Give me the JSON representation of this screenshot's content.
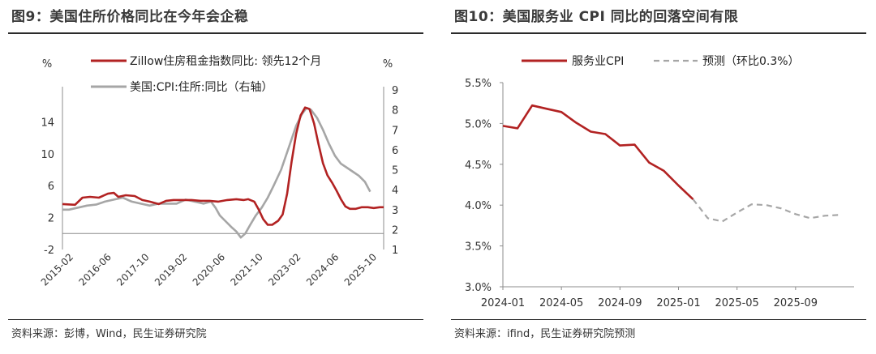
{
  "left": {
    "title": "图9：美国住所价格同比在今年会企稳",
    "source": "资料来源：彭博，Wind，民生证券研究院",
    "chart_data": {
      "type": "line",
      "left_unit": "%",
      "right_unit": "%",
      "y_left": {
        "min": -2,
        "max": 18,
        "ticks": [
          -2,
          2,
          6,
          10,
          14
        ]
      },
      "y_right": {
        "min": 1,
        "max": 9,
        "ticks": [
          1,
          2,
          3,
          4,
          5,
          6,
          7,
          8,
          9
        ]
      },
      "x_tick_labels": [
        "2015-02",
        "2016-06",
        "2017-10",
        "2019-02",
        "2020-06",
        "2021-10",
        "2023-02",
        "2024-06",
        "2025-10"
      ],
      "x_range": [
        2015.08,
        2025.83
      ],
      "legend": [
        "Zillow住房租金指数同比: 领先12个月",
        "美国:CPI:住所:同比（右轴）"
      ],
      "colors": {
        "zillow": "#b22222",
        "cpi": "#a6a6a6"
      },
      "series": [
        {
          "name": "Zillow住房租金指数同比: 领先12个月",
          "axis": "left",
          "points": [
            [
              2015.08,
              3.7
            ],
            [
              2015.5,
              3.6
            ],
            [
              2015.75,
              4.5
            ],
            [
              2016.0,
              4.6
            ],
            [
              2016.3,
              4.5
            ],
            [
              2016.6,
              5.0
            ],
            [
              2016.8,
              5.1
            ],
            [
              2016.95,
              4.6
            ],
            [
              2017.2,
              4.8
            ],
            [
              2017.5,
              4.7
            ],
            [
              2017.75,
              4.2
            ],
            [
              2018.0,
              4.0
            ],
            [
              2018.3,
              3.7
            ],
            [
              2018.55,
              4.1
            ],
            [
              2018.8,
              4.2
            ],
            [
              2019.1,
              4.2
            ],
            [
              2019.4,
              4.2
            ],
            [
              2019.7,
              4.1
            ],
            [
              2020.0,
              4.1
            ],
            [
              2020.3,
              4.0
            ],
            [
              2020.6,
              4.2
            ],
            [
              2020.9,
              4.3
            ],
            [
              2021.15,
              4.2
            ],
            [
              2021.3,
              4.3
            ],
            [
              2021.5,
              4.0
            ],
            [
              2021.65,
              3.0
            ],
            [
              2021.8,
              1.8
            ],
            [
              2021.95,
              1.1
            ],
            [
              2022.1,
              1.1
            ],
            [
              2022.3,
              1.6
            ],
            [
              2022.45,
              2.4
            ],
            [
              2022.6,
              5.0
            ],
            [
              2022.75,
              9.0
            ],
            [
              2022.9,
              12.5
            ],
            [
              2023.05,
              14.8
            ],
            [
              2023.2,
              15.8
            ],
            [
              2023.35,
              15.6
            ],
            [
              2023.5,
              13.8
            ],
            [
              2023.65,
              11.2
            ],
            [
              2023.8,
              8.8
            ],
            [
              2023.95,
              7.3
            ],
            [
              2024.1,
              6.4
            ],
            [
              2024.25,
              5.4
            ],
            [
              2024.4,
              4.3
            ],
            [
              2024.55,
              3.4
            ],
            [
              2024.7,
              3.1
            ],
            [
              2024.9,
              3.1
            ],
            [
              2025.1,
              3.3
            ],
            [
              2025.3,
              3.3
            ],
            [
              2025.5,
              3.2
            ],
            [
              2025.7,
              3.3
            ],
            [
              2025.83,
              3.3
            ]
          ]
        },
        {
          "name": "美国:CPI:住所:同比（右轴）",
          "axis": "right",
          "points": [
            [
              2015.08,
              3.0
            ],
            [
              2015.3,
              3.0
            ],
            [
              2015.6,
              3.1
            ],
            [
              2015.9,
              3.2
            ],
            [
              2016.2,
              3.25
            ],
            [
              2016.5,
              3.4
            ],
            [
              2016.8,
              3.5
            ],
            [
              2017.1,
              3.6
            ],
            [
              2017.4,
              3.4
            ],
            [
              2017.7,
              3.3
            ],
            [
              2018.0,
              3.2
            ],
            [
              2018.3,
              3.3
            ],
            [
              2018.6,
              3.3
            ],
            [
              2018.9,
              3.3
            ],
            [
              2019.2,
              3.5
            ],
            [
              2019.5,
              3.4
            ],
            [
              2019.8,
              3.3
            ],
            [
              2020.05,
              3.4
            ],
            [
              2020.2,
              3.1
            ],
            [
              2020.35,
              2.7
            ],
            [
              2020.55,
              2.4
            ],
            [
              2020.75,
              2.1
            ],
            [
              2020.9,
              1.9
            ],
            [
              2021.05,
              1.6
            ],
            [
              2021.2,
              1.8
            ],
            [
              2021.35,
              2.2
            ],
            [
              2021.55,
              2.7
            ],
            [
              2021.75,
              3.1
            ],
            [
              2021.95,
              3.6
            ],
            [
              2022.15,
              4.2
            ],
            [
              2022.4,
              5.0
            ],
            [
              2022.65,
              6.1
            ],
            [
              2022.9,
              7.2
            ],
            [
              2023.1,
              7.8
            ],
            [
              2023.25,
              8.1
            ],
            [
              2023.4,
              8.0
            ],
            [
              2023.6,
              7.6
            ],
            [
              2023.8,
              7.0
            ],
            [
              2024.0,
              6.3
            ],
            [
              2024.2,
              5.7
            ],
            [
              2024.4,
              5.3
            ],
            [
              2024.6,
              5.1
            ],
            [
              2024.8,
              4.9
            ],
            [
              2025.0,
              4.7
            ],
            [
              2025.2,
              4.4
            ],
            [
              2025.38,
              3.9
            ]
          ]
        }
      ]
    }
  },
  "right": {
    "title": "图10：美国服务业 CPI 同比的回落空间有限",
    "source": "资料来源：ifind，民生证券研究院预测",
    "chart_data": {
      "type": "line",
      "y": {
        "min": 3.0,
        "max": 5.5,
        "ticks": [
          3.0,
          3.5,
          4.0,
          4.5,
          5.0,
          5.5
        ],
        "labels": [
          "3.0%",
          "3.5%",
          "4.0%",
          "4.5%",
          "5.0%",
          "5.5%"
        ]
      },
      "x_tick_labels": [
        "2024-01",
        "2024-05",
        "2024-09",
        "2025-01",
        "2025-05",
        "2025-09"
      ],
      "x_tick_months": [
        0,
        4,
        8,
        12,
        16,
        20
      ],
      "x_range_months": [
        0,
        24
      ],
      "legend": [
        "服务业CPI",
        "预测（环比0.3%）"
      ],
      "colors": {
        "actual": "#b22222",
        "forecast": "#a6a6a6"
      },
      "series": [
        {
          "name": "服务业CPI",
          "month_index": [
            0,
            1,
            2,
            3,
            4,
            5,
            6,
            7,
            8,
            9,
            10,
            11,
            12,
            13
          ],
          "values": [
            4.97,
            4.94,
            5.22,
            5.18,
            5.14,
            5.01,
            4.9,
            4.87,
            4.73,
            4.74,
            4.52,
            4.42,
            4.24,
            4.07
          ]
        },
        {
          "name": "预测（环比0.3%）",
          "style": "dashed",
          "month_index": [
            13,
            14,
            15,
            16,
            17,
            18,
            19,
            20,
            21,
            22,
            23
          ],
          "values": [
            4.07,
            3.84,
            3.8,
            3.91,
            4.01,
            4.0,
            3.96,
            3.89,
            3.84,
            3.87,
            3.88
          ]
        }
      ]
    }
  }
}
